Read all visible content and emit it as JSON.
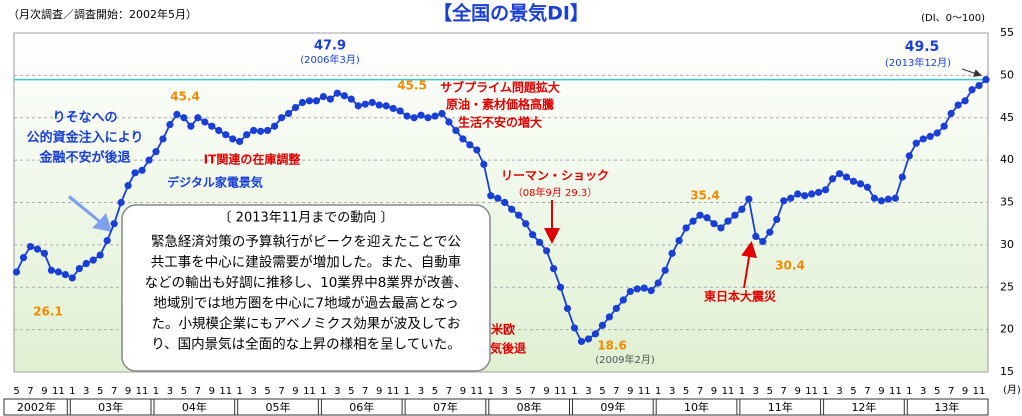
{
  "chart_data": {
    "type": "line",
    "title": "【全国の景気DI】",
    "subtitle": "（月次調査／調査開始：2002年5月）",
    "y_unit": "(DI、0～100)",
    "x_unit": "(月)",
    "categories": [
      "5",
      null,
      "7",
      null,
      "9",
      null,
      "11",
      null,
      "1",
      null,
      "3",
      null,
      "5",
      null,
      "7",
      null,
      "9",
      null,
      "11",
      null,
      "1",
      null,
      "3",
      null,
      "5",
      null,
      "7",
      null,
      "9",
      null,
      "11",
      null,
      "1",
      null,
      "3",
      null,
      "5",
      null,
      "7",
      null,
      "9",
      null,
      "11",
      null,
      "1",
      null,
      "3",
      null,
      "5",
      null,
      "7",
      null,
      "9",
      null,
      "11",
      null,
      "1",
      null,
      "3",
      null,
      "5",
      null,
      "7",
      null,
      "9",
      null,
      "11",
      null,
      "1",
      null,
      "3",
      null,
      "5",
      null,
      "7",
      null,
      "9",
      null,
      "11",
      null,
      "1",
      null,
      "3",
      null,
      "5",
      null,
      "7",
      null,
      "9",
      null,
      "11",
      null,
      "1",
      null,
      "3",
      null,
      "5",
      null,
      "7",
      null,
      "9",
      null,
      "11",
      null,
      "1",
      null,
      "3",
      null,
      "5",
      null,
      "7",
      null,
      "9",
      null,
      "11",
      null,
      "1",
      null,
      "3",
      null,
      "5",
      null,
      "7",
      null,
      "9",
      null,
      "11",
      null,
      "1",
      null,
      "3",
      null,
      "5",
      null,
      "7",
      null,
      "9",
      null,
      "11",
      null
    ],
    "year_labels": [
      "2002年",
      "03年",
      "04年",
      "05年",
      "06年",
      "07年",
      "08年",
      "09年",
      "10年",
      "11年",
      "12年",
      "13年"
    ],
    "series": [
      {
        "color": "#1a3fd6",
        "values": [
          26.8,
          28.5,
          29.8,
          29.5,
          29.0,
          27.0,
          26.8,
          26.5,
          26.1,
          27.2,
          27.8,
          28.2,
          28.8,
          30.5,
          32.5,
          35.0,
          37.0,
          38.5,
          38.8,
          40.0,
          41.0,
          42.5,
          44.2,
          45.4,
          45.0,
          44.0,
          45.0,
          44.5,
          44.0,
          43.5,
          43.0,
          42.5,
          42.2,
          43.0,
          43.5,
          43.4,
          43.5,
          44.0,
          45.0,
          45.5,
          46.2,
          46.8,
          47.0,
          47.0,
          47.5,
          47.2,
          47.9,
          47.6,
          47.2,
          46.4,
          46.6,
          46.8,
          46.5,
          46.4,
          46.1,
          45.8,
          45.2,
          45.0,
          45.3,
          45.0,
          45.2,
          45.5,
          44.5,
          43.5,
          42.5,
          41.8,
          41.2,
          39.5,
          35.8,
          35.5,
          35.0,
          34.2,
          33.5,
          32.5,
          31.2,
          30.3,
          29.3,
          27.2,
          25.0,
          22.5,
          20.2,
          18.6,
          18.9,
          19.5,
          20.5,
          21.5,
          22.5,
          23.5,
          24.5,
          24.8,
          24.9,
          24.6,
          25.5,
          27.0,
          29.0,
          30.5,
          32.0,
          32.8,
          33.5,
          33.2,
          32.5,
          32.0,
          32.8,
          33.5,
          34.2,
          35.4,
          31.0,
          30.4,
          31.5,
          33.0,
          35.2,
          35.5,
          36.0,
          35.8,
          36.0,
          36.2,
          36.5,
          37.8,
          38.4,
          38.0,
          37.5,
          37.2,
          36.8,
          35.5,
          35.2,
          35.4,
          35.5,
          38.0,
          40.5,
          42.0,
          42.5,
          42.8,
          43.2,
          44.0,
          45.5,
          46.5,
          47.0,
          48.3,
          48.8,
          49.5
        ]
      }
    ],
    "ylim": [
      15,
      55
    ],
    "yticks": [
      15,
      20,
      25,
      30,
      35,
      40,
      45,
      50,
      55
    ],
    "grid": true,
    "annotations": [
      {
        "text": "45.4",
        "color": "#f08c00"
      },
      {
        "text": "47.9",
        "color": "#1a3fd6"
      },
      {
        "text": "(2006年3月)",
        "color": "#1a3fd6"
      },
      {
        "text": "45.5",
        "color": "#f08c00"
      },
      {
        "text": "サブプライム問題拡大",
        "color": "#e00000"
      },
      {
        "text": "原油・素材価格高騰",
        "color": "#e00000"
      },
      {
        "text": "生活不安の増大",
        "color": "#e00000"
      },
      {
        "text": "49.5",
        "color": "#1a3fd6"
      },
      {
        "text": "(2013年12月)",
        "color": "#1a3fd6"
      },
      {
        "text": "りそなへの",
        "color": "#1a3fd6"
      },
      {
        "text": "公的資金注入により",
        "color": "#1a3fd6"
      },
      {
        "text": "金融不安が後退",
        "color": "#1a3fd6"
      },
      {
        "text": "IT関連の在庫調整",
        "color": "#e00000"
      },
      {
        "text": "デジタル家電景気",
        "color": "#1a3fd6"
      },
      {
        "text": "リーマン・ショック",
        "color": "#e00000"
      },
      {
        "text": "（08年9月 29.3）",
        "color": "#e00000"
      },
      {
        "text": "35.4",
        "color": "#f08c00"
      },
      {
        "text": "30.4",
        "color": "#f08c00"
      },
      {
        "text": "東日本大震災",
        "color": "#e00000"
      },
      {
        "text": "26.1",
        "color": "#f08c00"
      },
      {
        "text": "日米欧",
        "color": "#e00000"
      },
      {
        "text": "同時景気後退",
        "color": "#e00000"
      },
      {
        "text": "18.6",
        "color": "#f08c00"
      },
      {
        "text": "(2009年2月)",
        "color": "#555555"
      }
    ],
    "box": {
      "heading": "〔 2013年11月までの動向 〕",
      "lines": [
        "緊急経済対策の予算執行がピークを迎えたことで公",
        "共工事を中心に建設需要が増加した。また、自動車",
        "などの輸出も好調に推移し、10業界中8業界が改善、",
        "地域別では地方圏を中心に7地域が過去最高となっ",
        "た。小規模企業にもアベノミクス効果が波及してお",
        "り、国内景気は全面的な上昇の様相を呈していた。"
      ]
    }
  }
}
